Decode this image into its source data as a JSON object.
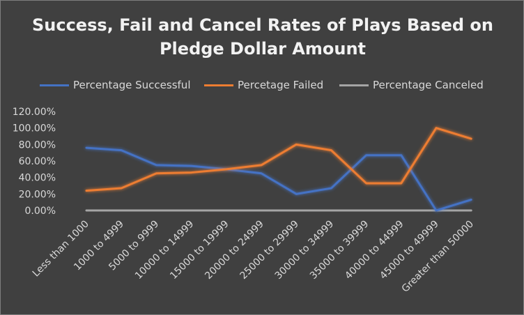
{
  "chart_data": {
    "type": "line",
    "title": "Success, Fail and Cancel Rates of Plays Based on Pledge Dollar Amount",
    "categories": [
      "Less than 1000",
      "1000 to 4999",
      "5000 to 9999",
      "10000 to 14999",
      "15000 to 19999",
      "20000 to 24999",
      "25000 to 29999",
      "30000 to 34999",
      "35000 to 39999",
      "40000 to 44999",
      "45000 to 49999",
      "Greater than 50000"
    ],
    "series": [
      {
        "name": "Percentage Successful",
        "color": "#4472c4",
        "values": [
          76,
          73,
          55,
          54,
          50,
          45,
          20,
          27,
          67,
          67,
          0,
          13
        ]
      },
      {
        "name": "Percetage Failed",
        "color": "#ed7d31",
        "values": [
          24,
          27,
          45,
          46,
          50,
          55,
          80,
          73,
          33,
          33,
          100,
          87
        ]
      },
      {
        "name": "Percentage Canceled",
        "color": "#a5a5a5",
        "values": [
          0,
          0,
          0,
          0,
          0,
          0,
          0,
          0,
          0,
          0,
          0,
          0
        ]
      }
    ],
    "ylim": [
      0,
      120
    ],
    "yticks": [
      "0.00%",
      "20.00%",
      "40.00%",
      "60.00%",
      "80.00%",
      "100.00%",
      "120.00%"
    ],
    "grid": false,
    "legend": "top"
  }
}
